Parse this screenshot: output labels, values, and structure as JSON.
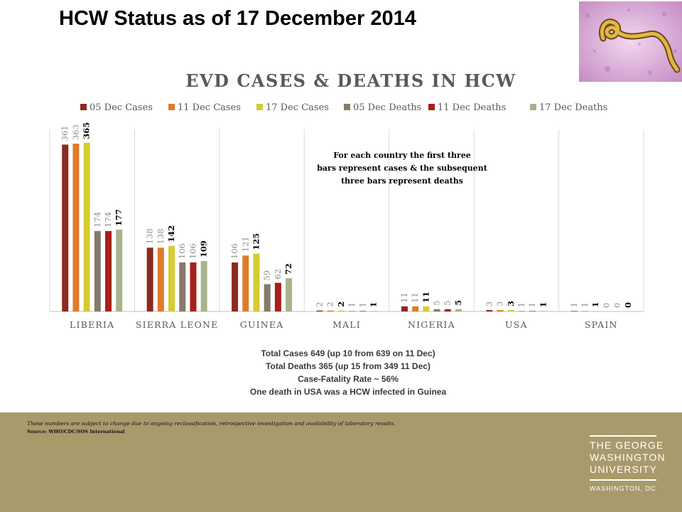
{
  "slide": {
    "title": "HCW Status as of 17 December 2014"
  },
  "stats": {
    "lines": [
      "Total Cases 649 (up 10 from 639 on 11 Dec)",
      "Total Deaths 365 (up 15 from 349 11 Dec)",
      "Case-Fatality Rate ~ 56%",
      "One death in USA was a HCW infected in Guinea"
    ]
  },
  "footer": {
    "disclaimer": "These numbers are subject to change due to ongoing reclassification, retrospective investigation and availability of laboratory results.",
    "source": "Source: WHO/CDC/SOS International"
  },
  "logo": {
    "line1": "THE GEORGE",
    "line2": "WASHINGTON",
    "line3": "UNIVERSITY",
    "sub": "WASHINGTON, DC"
  },
  "image": {
    "icon": "ebola-virus-micrograph"
  },
  "chart_data": {
    "type": "bar",
    "title": "EVD CASES & DEATHS IN HCW",
    "annotation": [
      "For each country the first three",
      "bars represent cases & the subsequent",
      "three bars represent deaths"
    ],
    "legend_position": "top",
    "grid": "vertical category separators",
    "ylim": [
      0,
      400
    ],
    "categories": [
      "LIBERIA",
      "SIERRA LEONE",
      "GUINEA",
      "MALI",
      "NIGERIA",
      "USA",
      "SPAIN"
    ],
    "series": [
      {
        "name": "05 Dec Cases",
        "color": "#8b2a20",
        "values": [
          361,
          138,
          106,
          2,
          11,
          3,
          1
        ]
      },
      {
        "name": "11 Dec Cases",
        "color": "#e07b2a",
        "values": [
          363,
          138,
          121,
          2,
          11,
          3,
          1
        ]
      },
      {
        "name": "17 Dec Cases",
        "color": "#d7cb32",
        "values": [
          365,
          142,
          125,
          2,
          11,
          3,
          1
        ]
      },
      {
        "name": "05 Dec Deaths",
        "color": "#857a6c",
        "values": [
          174,
          106,
          59,
          1,
          5,
          1,
          0
        ]
      },
      {
        "name": "11 Dec Deaths",
        "color": "#a52016",
        "values": [
          174,
          106,
          62,
          1,
          5,
          1,
          0
        ]
      },
      {
        "name": "17 Dec Deaths",
        "color": "#a7b48b",
        "values": [
          177,
          109,
          72,
          1,
          5,
          1,
          0
        ]
      }
    ],
    "bold_label_series": [
      "17 Dec Cases",
      "17 Dec Deaths"
    ]
  }
}
